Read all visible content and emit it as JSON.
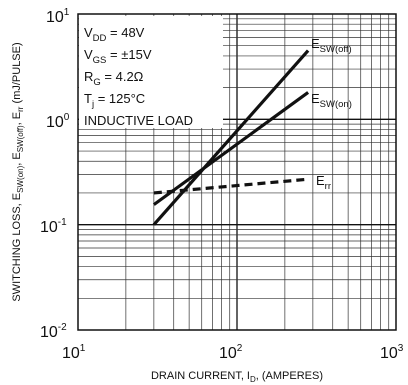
{
  "chart_data": {
    "type": "line",
    "xscale": "log",
    "yscale": "log",
    "xlim": [
      10,
      1000
    ],
    "ylim": [
      0.01,
      10
    ],
    "x_ticks": [
      {
        "base": "10",
        "exp": "1",
        "value": 10
      },
      {
        "base": "10",
        "exp": "2",
        "value": 100
      },
      {
        "base": "10",
        "exp": "3",
        "value": 1000
      }
    ],
    "y_ticks": [
      {
        "base": "10",
        "exp": "-2",
        "value": 0.01
      },
      {
        "base": "10",
        "exp": "-1",
        "value": 0.1
      },
      {
        "base": "10",
        "exp": "0",
        "value": 1
      },
      {
        "base": "10",
        "exp": "1",
        "value": 10
      }
    ],
    "grid": true,
    "xlabel": {
      "main": "DRAIN CURRENT, I",
      "sub": "D",
      "tail": ", (AMPERES)"
    },
    "ylabel": {
      "p1": "SWITCHING LOSS, E",
      "s1": "SW(on)",
      "p2": ", E",
      "s2": "SW(off)",
      "p3": ", E",
      "s3": "rr",
      "p4": "  (mJ/PULSE)"
    },
    "conditions": [
      {
        "main": "V",
        "sub": "DD",
        "tail": " = 48V"
      },
      {
        "main": "V",
        "sub": "GS",
        "tail": " = ±15V"
      },
      {
        "main": "R",
        "sub": "G",
        "tail": " = 4.2Ω"
      },
      {
        "main": "T",
        "sub": "j",
        "tail": " = 125°C"
      },
      {
        "main": "INDUCTIVE LOAD",
        "sub": "",
        "tail": ""
      }
    ],
    "series": [
      {
        "main": "E",
        "sub": "SW(off)",
        "style": "solid",
        "x": [
          30,
          280
        ],
        "y": [
          0.1,
          4.5
        ]
      },
      {
        "main": "E",
        "sub": "SW(on)",
        "style": "solid",
        "x": [
          30,
          280
        ],
        "y": [
          0.155,
          1.8
        ]
      },
      {
        "main": "E",
        "sub": "rr",
        "style": "dashed",
        "x": [
          30,
          280
        ],
        "y": [
          0.2,
          0.27
        ]
      }
    ]
  }
}
